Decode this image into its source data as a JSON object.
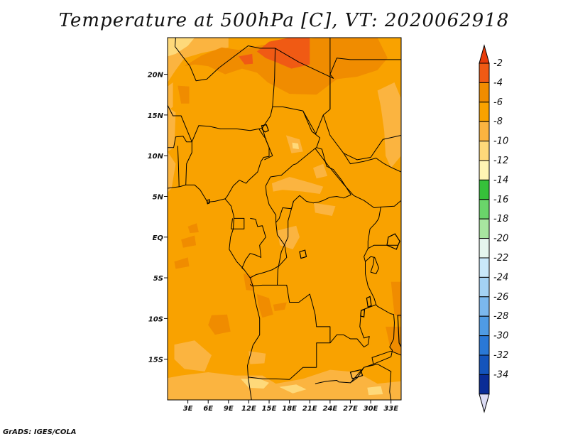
{
  "title": "Temperature at 500hPa [C], VT: 2020062918",
  "credit": "GrADS: IGES/COLA",
  "map": {
    "lon_range": [
      0,
      34.5
    ],
    "lat_range": [
      -20,
      24.5
    ],
    "background_color": "#f9a200",
    "border_color": "#000000",
    "lat_ticks": [
      {
        "value": 20,
        "label": "20N"
      },
      {
        "value": 15,
        "label": "15N"
      },
      {
        "value": 10,
        "label": "10N"
      },
      {
        "value": 5,
        "label": "5N"
      },
      {
        "value": 0,
        "label": "EQ"
      },
      {
        "value": -5,
        "label": "5S"
      },
      {
        "value": -10,
        "label": "10S"
      },
      {
        "value": -15,
        "label": "15S"
      }
    ],
    "lon_ticks": [
      {
        "value": 3,
        "label": "3E"
      },
      {
        "value": 6,
        "label": "6E"
      },
      {
        "value": 9,
        "label": "9E"
      },
      {
        "value": 12,
        "label": "12E"
      },
      {
        "value": 15,
        "label": "15E"
      },
      {
        "value": 18,
        "label": "18E"
      },
      {
        "value": 21,
        "label": "21E"
      },
      {
        "value": 24,
        "label": "24E"
      },
      {
        "value": 27,
        "label": "27E"
      },
      {
        "value": 30,
        "label": "30E"
      },
      {
        "value": 33,
        "label": "33E"
      }
    ]
  },
  "colorbar": {
    "levels": [
      {
        "color": "#f05a14",
        "label": "-2"
      },
      {
        "color": "#f08c00",
        "label": "-4"
      },
      {
        "color": "#f9a200",
        "label": "-6"
      },
      {
        "color": "#fbb440",
        "label": "-8"
      },
      {
        "color": "#fed97a",
        "label": "-10"
      },
      {
        "color": "#fff5b4",
        "label": "-12"
      },
      {
        "color": "#36c13a",
        "label": "-14"
      },
      {
        "color": "#6ad56a",
        "label": "-16"
      },
      {
        "color": "#a8e6a0",
        "label": "-18"
      },
      {
        "color": "#e6f6ee",
        "label": "-20"
      },
      {
        "color": "#c9e8fa",
        "label": "-22"
      },
      {
        "color": "#a4d2f4",
        "label": "-24"
      },
      {
        "color": "#7bb8ee",
        "label": "-26"
      },
      {
        "color": "#4f9be4",
        "label": "-28"
      },
      {
        "color": "#2a78d6",
        "label": "-30"
      },
      {
        "color": "#1454bc",
        "label": "-32"
      },
      {
        "color": "#0a2c96",
        "label": "-34"
      }
    ],
    "top_arrow_color": "#e83c0a",
    "bottom_arrow_color": "#dcdcf4"
  }
}
